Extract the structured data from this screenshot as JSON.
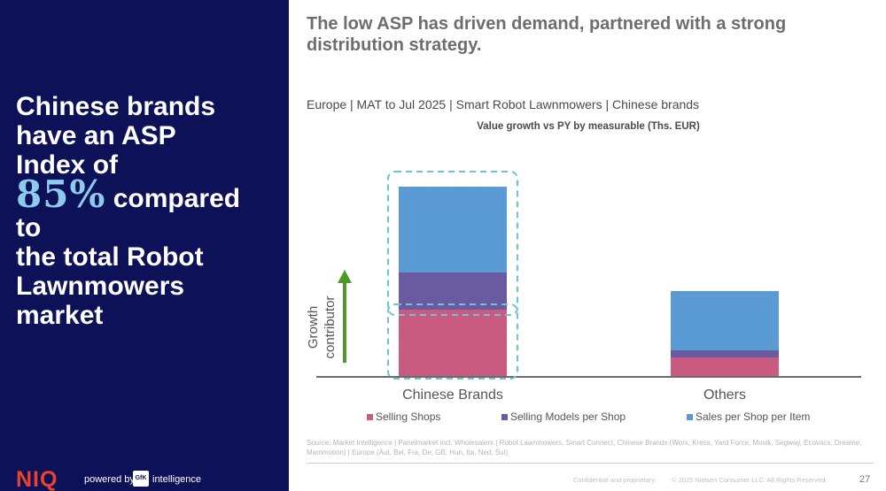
{
  "left_panel": {
    "headline_line1": "Chinese brands",
    "headline_line2": "have an ASP",
    "headline_line3": "Index of",
    "headline_highlight": "85%",
    "headline_line4": "compared",
    "headline_line5": "to",
    "headline_line6": "the total Robot",
    "headline_line7": "Lawnmowers",
    "headline_line8": "market",
    "brand": "NIQ",
    "powered_by": "powered by",
    "gfk_badge": "GfK",
    "intelligence": "intelligence"
  },
  "slide": {
    "title": "The low ASP has driven demand, partnered with a strong distribution strategy.",
    "subtitle": "Europe | MAT to Jul 2025 | Smart Robot Lawnmowers | Chinese brands",
    "source": "Source: Market Intelligence | Panelmarket incl. Wholesalers | Robot Lawnmowers, Smart Connect, Chinese Brands (Worx, Kress, Yard Force, Movik, Segway, Ecovacs, Dreame, Mammotion) | Europe (Aut, Bel, Fra, De, GB, Hun, Ita, Ned, Sui)",
    "footer_confidential": "Confidential and proprietary",
    "footer_copyright": "© 2025 Nielsen Consumer LLC. All Rights Reserved.",
    "page_number": "27"
  },
  "chart_data": {
    "type": "bar",
    "stacked": true,
    "title": "Value growth vs PY by measurable (Ths. EUR)",
    "categories": [
      "Chinese Brands",
      "Others"
    ],
    "series": [
      {
        "name": "Selling Shops",
        "color": "#c95a80",
        "values": [
          75,
          21
        ]
      },
      {
        "name": "Selling Models per Shop",
        "color": "#6a5a9f",
        "values": [
          42,
          8
        ]
      },
      {
        "name": "Sales per Shop per Item",
        "color": "#5b9bd5",
        "values": [
          97,
          67
        ]
      }
    ],
    "ylim": [
      0,
      235
    ],
    "y_axis_label": "Growth contributor",
    "legend_position": "bottom",
    "grid": false,
    "annotation_box_color": "#6fc5cf",
    "arrow_color": "#4c9a2a"
  }
}
